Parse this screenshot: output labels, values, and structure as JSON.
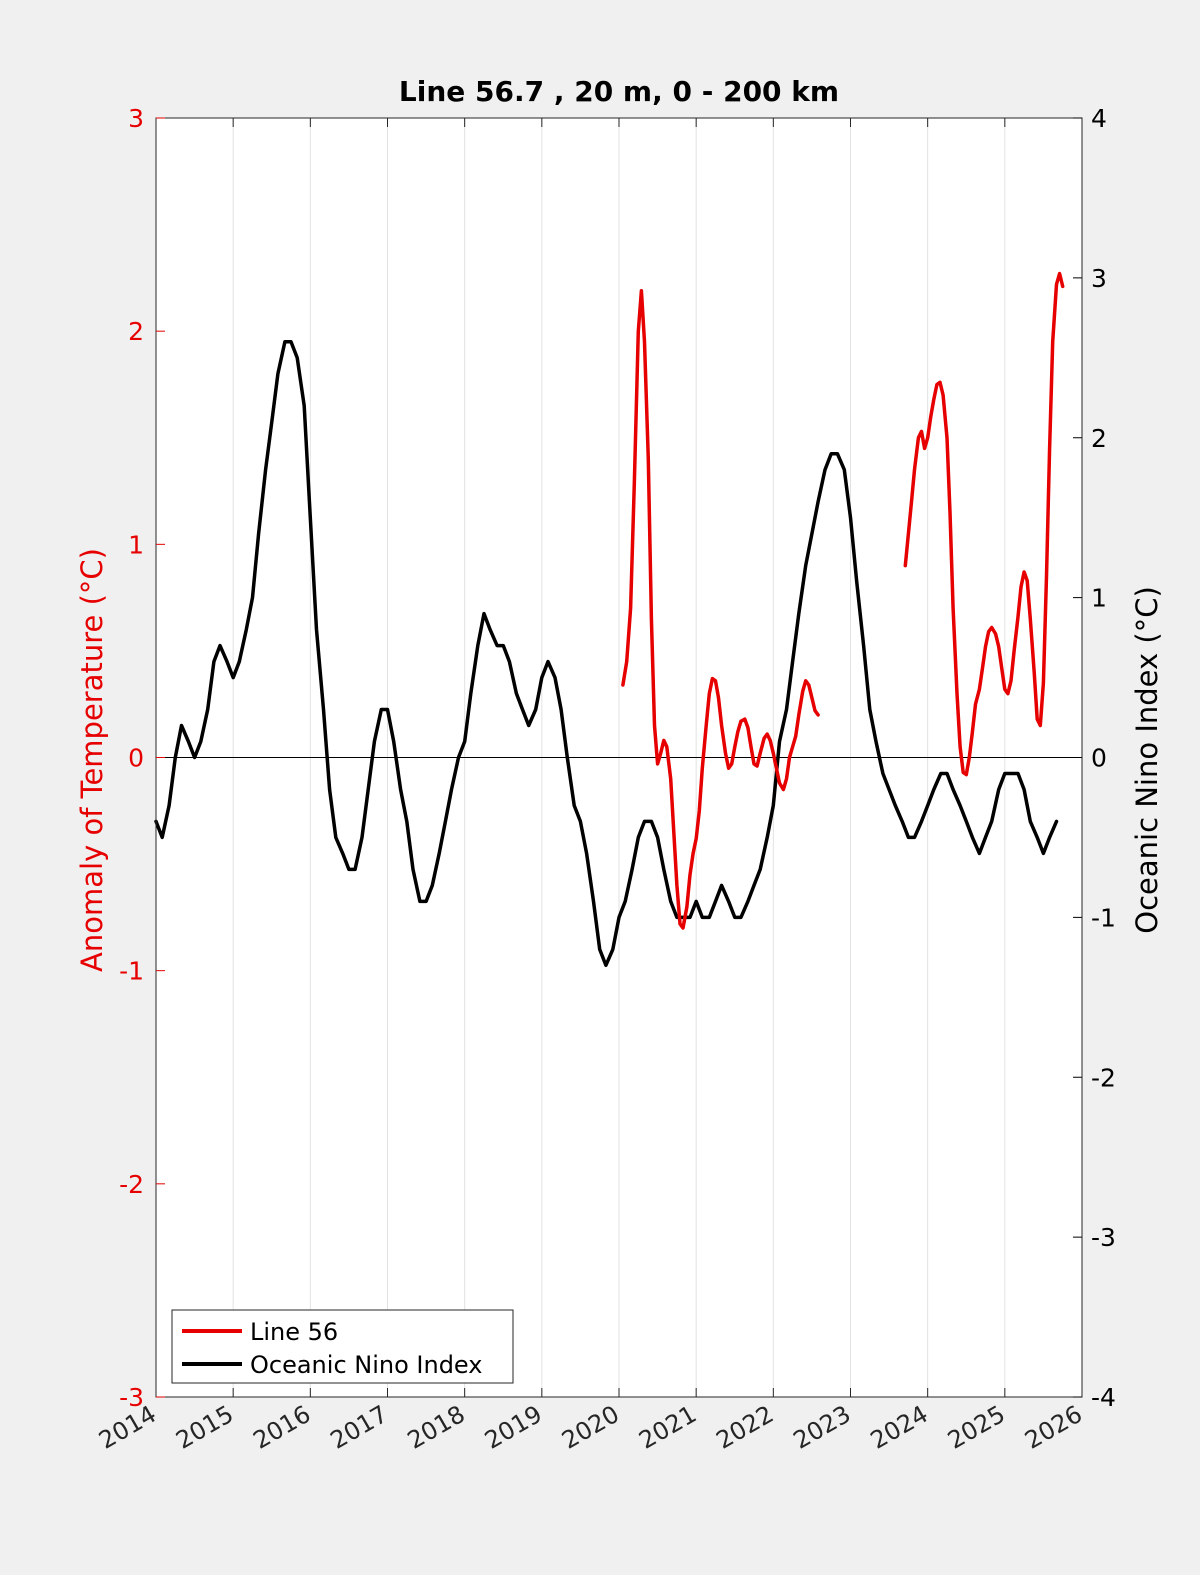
{
  "chart_data": {
    "type": "line",
    "title": "Line 56.7 , 20 m, 0 - 200 km",
    "xlabel": "",
    "ylabel_left": "Anomaly of Temperature (°C)",
    "ylabel_right": "Oceanic Nino Index (°C)",
    "xlim": [
      2014,
      2026
    ],
    "ylim_left": [
      -3,
      3
    ],
    "ylim_right": [
      -4,
      4
    ],
    "x_ticks": [
      2014,
      2015,
      2016,
      2017,
      2018,
      2019,
      2020,
      2021,
      2022,
      2023,
      2024,
      2025,
      2026
    ],
    "x_tick_labels": [
      "2014",
      "2015",
      "2016",
      "2017",
      "2018",
      "2019",
      "2020",
      "2021",
      "2022",
      "2023",
      "2024",
      "2025",
      "2026"
    ],
    "y_left_ticks": [
      -3,
      -2,
      -1,
      0,
      1,
      2,
      3
    ],
    "y_left_tick_labels": [
      "-3",
      "-2",
      "-1",
      "0",
      "1",
      "2",
      "3"
    ],
    "y_right_ticks": [
      -4,
      -3,
      -2,
      -1,
      0,
      1,
      2,
      3,
      4
    ],
    "y_right_tick_labels": [
      "-4",
      "-3",
      "-2",
      "-1",
      "0",
      "1",
      "2",
      "3",
      "4"
    ],
    "grid": "vertical",
    "legend_position": "bottom-left",
    "colors": {
      "line56": "#e60000",
      "oni": "#000000",
      "left_axis": "#e60000",
      "right_axis": "#000000",
      "background": "#f0f0f0",
      "plot_background": "#ffffff"
    },
    "series": [
      {
        "name": "Line 56",
        "axis": "left",
        "color": "#e60000",
        "segments": [
          [
            [
              2020.05,
              0.34
            ],
            [
              2020.1,
              0.45
            ],
            [
              2020.15,
              0.7
            ],
            [
              2020.2,
              1.3
            ],
            [
              2020.25,
              2.0
            ],
            [
              2020.29,
              2.19
            ],
            [
              2020.33,
              1.95
            ],
            [
              2020.38,
              1.4
            ],
            [
              2020.42,
              0.65
            ],
            [
              2020.46,
              0.15
            ],
            [
              2020.5,
              -0.03
            ],
            [
              2020.54,
              0.02
            ],
            [
              2020.58,
              0.08
            ],
            [
              2020.62,
              0.05
            ],
            [
              2020.67,
              -0.1
            ],
            [
              2020.71,
              -0.35
            ],
            [
              2020.75,
              -0.6
            ],
            [
              2020.79,
              -0.78
            ],
            [
              2020.83,
              -0.8
            ],
            [
              2020.88,
              -0.7
            ],
            [
              2020.92,
              -0.55
            ],
            [
              2020.96,
              -0.45
            ],
            [
              2021.0,
              -0.38
            ],
            [
              2021.04,
              -0.25
            ],
            [
              2021.08,
              -0.05
            ],
            [
              2021.13,
              0.15
            ],
            [
              2021.17,
              0.3
            ],
            [
              2021.21,
              0.37
            ],
            [
              2021.25,
              0.36
            ],
            [
              2021.29,
              0.28
            ],
            [
              2021.33,
              0.15
            ],
            [
              2021.38,
              0.02
            ],
            [
              2021.42,
              -0.05
            ],
            [
              2021.46,
              -0.03
            ],
            [
              2021.5,
              0.05
            ],
            [
              2021.54,
              0.12
            ],
            [
              2021.58,
              0.17
            ],
            [
              2021.63,
              0.18
            ],
            [
              2021.67,
              0.14
            ],
            [
              2021.71,
              0.05
            ],
            [
              2021.75,
              -0.03
            ],
            [
              2021.79,
              -0.04
            ],
            [
              2021.83,
              0.02
            ],
            [
              2021.88,
              0.09
            ],
            [
              2021.92,
              0.11
            ],
            [
              2021.96,
              0.08
            ],
            [
              2022.0,
              0.02
            ],
            [
              2022.04,
              -0.05
            ],
            [
              2022.08,
              -0.12
            ],
            [
              2022.13,
              -0.15
            ],
            [
              2022.17,
              -0.1
            ],
            [
              2022.21,
              0.0
            ],
            [
              2022.25,
              0.05
            ],
            [
              2022.29,
              0.1
            ],
            [
              2022.33,
              0.2
            ],
            [
              2022.38,
              0.31
            ],
            [
              2022.42,
              0.36
            ],
            [
              2022.46,
              0.34
            ],
            [
              2022.5,
              0.28
            ],
            [
              2022.54,
              0.22
            ],
            [
              2022.58,
              0.2
            ]
          ],
          [
            [
              2023.71,
              0.9
            ],
            [
              2023.75,
              1.05
            ],
            [
              2023.79,
              1.2
            ],
            [
              2023.83,
              1.35
            ],
            [
              2023.88,
              1.5
            ],
            [
              2023.92,
              1.53
            ],
            [
              2023.96,
              1.45
            ],
            [
              2024.0,
              1.5
            ],
            [
              2024.04,
              1.6
            ],
            [
              2024.08,
              1.68
            ],
            [
              2024.12,
              1.75
            ],
            [
              2024.16,
              1.76
            ],
            [
              2024.2,
              1.7
            ],
            [
              2024.25,
              1.5
            ],
            [
              2024.29,
              1.15
            ],
            [
              2024.33,
              0.7
            ],
            [
              2024.38,
              0.3
            ],
            [
              2024.42,
              0.05
            ],
            [
              2024.46,
              -0.07
            ],
            [
              2024.5,
              -0.08
            ],
            [
              2024.54,
              0.0
            ],
            [
              2024.58,
              0.12
            ],
            [
              2024.62,
              0.25
            ],
            [
              2024.67,
              0.32
            ],
            [
              2024.71,
              0.42
            ],
            [
              2024.75,
              0.52
            ],
            [
              2024.79,
              0.59
            ],
            [
              2024.83,
              0.61
            ],
            [
              2024.88,
              0.58
            ],
            [
              2024.92,
              0.52
            ],
            [
              2024.96,
              0.42
            ],
            [
              2025.0,
              0.32
            ],
            [
              2025.04,
              0.3
            ],
            [
              2025.08,
              0.36
            ],
            [
              2025.12,
              0.5
            ],
            [
              2025.17,
              0.66
            ],
            [
              2025.21,
              0.8
            ],
            [
              2025.25,
              0.87
            ],
            [
              2025.29,
              0.83
            ],
            [
              2025.33,
              0.65
            ],
            [
              2025.38,
              0.4
            ],
            [
              2025.42,
              0.18
            ],
            [
              2025.46,
              0.15
            ],
            [
              2025.5,
              0.35
            ],
            [
              2025.54,
              0.85
            ],
            [
              2025.58,
              1.45
            ],
            [
              2025.62,
              1.95
            ],
            [
              2025.67,
              2.22
            ],
            [
              2025.71,
              2.27
            ],
            [
              2025.75,
              2.21
            ]
          ]
        ]
      },
      {
        "name": "Oceanic Nino Index",
        "axis": "right",
        "color": "#000000",
        "x": [
          2014.0,
          2014.08,
          2014.17,
          2014.25,
          2014.33,
          2014.42,
          2014.5,
          2014.58,
          2014.67,
          2014.75,
          2014.83,
          2014.92,
          2015.0,
          2015.08,
          2015.17,
          2015.25,
          2015.33,
          2015.42,
          2015.5,
          2015.58,
          2015.67,
          2015.75,
          2015.83,
          2015.92,
          2016.0,
          2016.08,
          2016.17,
          2016.25,
          2016.33,
          2016.42,
          2016.5,
          2016.58,
          2016.67,
          2016.75,
          2016.83,
          2016.92,
          2017.0,
          2017.08,
          2017.17,
          2017.25,
          2017.33,
          2017.42,
          2017.5,
          2017.58,
          2017.67,
          2017.75,
          2017.83,
          2017.92,
          2018.0,
          2018.08,
          2018.17,
          2018.25,
          2018.33,
          2018.42,
          2018.5,
          2018.58,
          2018.67,
          2018.75,
          2018.83,
          2018.92,
          2019.0,
          2019.08,
          2019.17,
          2019.25,
          2019.33,
          2019.42,
          2019.5,
          2019.58,
          2019.67,
          2019.75,
          2019.83,
          2019.92,
          2020.0,
          2020.08,
          2020.17,
          2020.25,
          2020.33,
          2020.42,
          2020.5,
          2020.58,
          2020.67,
          2020.75,
          2020.83,
          2020.92,
          2021.0,
          2021.08,
          2021.17,
          2021.25,
          2021.33,
          2021.42,
          2021.5,
          2021.58,
          2021.67,
          2021.75,
          2021.83,
          2021.92,
          2022.0,
          2022.08,
          2022.17,
          2022.25,
          2022.33,
          2022.42,
          2022.5,
          2022.58,
          2022.67,
          2022.75,
          2022.83,
          2022.92,
          2023.0,
          2023.08,
          2023.17,
          2023.25,
          2023.33,
          2023.42,
          2023.5,
          2023.58,
          2023.67,
          2023.75,
          2023.83,
          2023.92,
          2024.0,
          2024.08,
          2024.17,
          2024.25,
          2024.33,
          2024.42,
          2024.5,
          2024.58,
          2024.67,
          2024.75,
          2024.83,
          2024.92,
          2025.0,
          2025.08,
          2025.17,
          2025.25,
          2025.33,
          2025.42,
          2025.5,
          2025.58,
          2025.67
        ],
        "y": [
          -0.4,
          -0.5,
          -0.3,
          0.0,
          0.2,
          0.1,
          0.0,
          0.1,
          0.3,
          0.6,
          0.7,
          0.6,
          0.5,
          0.6,
          0.8,
          1.0,
          1.4,
          1.8,
          2.1,
          2.4,
          2.6,
          2.6,
          2.5,
          2.2,
          1.5,
          0.8,
          0.3,
          -0.2,
          -0.5,
          -0.6,
          -0.7,
          -0.7,
          -0.5,
          -0.2,
          0.1,
          0.3,
          0.3,
          0.1,
          -0.2,
          -0.4,
          -0.7,
          -0.9,
          -0.9,
          -0.8,
          -0.6,
          -0.4,
          -0.2,
          0.0,
          0.1,
          0.4,
          0.7,
          0.9,
          0.8,
          0.7,
          0.7,
          0.6,
          0.4,
          0.3,
          0.2,
          0.3,
          0.5,
          0.6,
          0.5,
          0.3,
          0.0,
          -0.3,
          -0.4,
          -0.6,
          -0.9,
          -1.2,
          -1.3,
          -1.2,
          -1.0,
          -0.9,
          -0.7,
          -0.5,
          -0.4,
          -0.4,
          -0.5,
          -0.7,
          -0.9,
          -1.0,
          -1.0,
          -1.0,
          -0.9,
          -1.0,
          -1.0,
          -0.9,
          -0.8,
          -0.9,
          -1.0,
          -1.0,
          -0.9,
          -0.8,
          -0.7,
          -0.5,
          -0.3,
          0.1,
          0.3,
          0.6,
          0.9,
          1.2,
          1.4,
          1.6,
          1.8,
          1.9,
          1.9,
          1.8,
          1.5,
          1.1,
          0.7,
          0.3,
          0.1,
          -0.1,
          -0.2,
          -0.3,
          -0.4,
          -0.5,
          -0.5,
          -0.4,
          -0.3,
          -0.2,
          -0.1,
          -0.1,
          -0.2,
          -0.3,
          -0.4,
          -0.5,
          -0.6,
          -0.5,
          -0.4,
          -0.2,
          -0.1,
          -0.1,
          -0.1,
          -0.2,
          -0.4,
          -0.5,
          -0.6,
          -0.5,
          -0.4
        ]
      }
    ]
  }
}
